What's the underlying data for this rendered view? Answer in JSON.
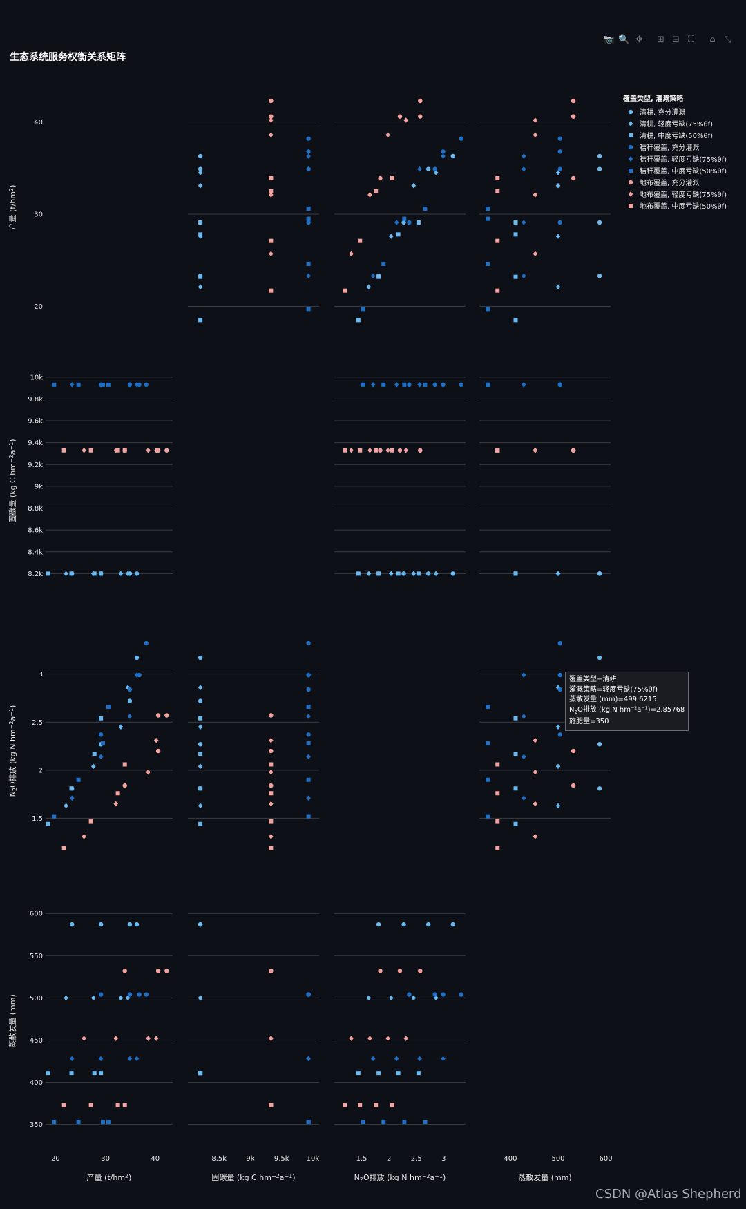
{
  "title": "生态系统服务权衡关系矩阵",
  "watermark": "CSDN @Atlas Shepherd",
  "legend_title": "覆盖类型, 灌溉策略",
  "modebar": [
    {
      "name": "camera-icon",
      "glyph": "📷"
    },
    {
      "name": "zoom-icon",
      "glyph": "🔍"
    },
    {
      "name": "pan-icon",
      "glyph": "✥"
    },
    {
      "name": "zoom-in-icon",
      "glyph": "⊞"
    },
    {
      "name": "zoom-out-icon",
      "glyph": "⊟"
    },
    {
      "name": "autoscale-icon",
      "glyph": "⛶"
    },
    {
      "name": "reset-axes-icon",
      "glyph": "⌂"
    },
    {
      "name": "toggle-spike-icon",
      "glyph": "⤡"
    }
  ],
  "tooltip": {
    "line1": "覆盖类型=清耕",
    "line2": "灌溉策略=轻度亏缺(75%θf)",
    "line3": "蒸散发量 (mm)=499.6215",
    "line4_pre": "N",
    "line4_sub": "2",
    "line4_post": "O排放 (kg N hm⁻²a⁻¹)=2.85768",
    "line5": "施肥量=350"
  },
  "chart_data": {
    "type": "scatter",
    "title": "生态系统服务权衡关系矩阵",
    "dimensions": [
      {
        "key": "yield",
        "label": "产量 (t/hm²)",
        "range": [
          18,
          43.5
        ],
        "ticks": [
          20,
          30,
          40
        ],
        "tick_labels": [
          "20",
          "30",
          "40"
        ]
      },
      {
        "key": "carbon",
        "label": "固碳量 (kg C hm⁻²a⁻¹)",
        "range": [
          8000,
          10100
        ],
        "ticks": [
          8200,
          8400,
          8600,
          8800,
          9000,
          9200,
          9400,
          9600,
          9800,
          10000
        ],
        "tick_labels": [
          "8.2k",
          "8.4k",
          "8.6k",
          "8.8k",
          "9k",
          "9.2k",
          "9.4k",
          "9.6k",
          "9.8k",
          "10k"
        ],
        "tick_labels_x": [
          "",
          "8.5k",
          "",
          "9k",
          "",
          "9.5k",
          "",
          "10k"
        ],
        "ticks_x": [
          8000,
          8500,
          8750,
          9000,
          9250,
          9500,
          9750,
          10000
        ]
      },
      {
        "key": "n2o",
        "label": "N₂O排放 (kg N hm⁻²a⁻¹)",
        "range": [
          1.0,
          3.4
        ],
        "ticks": [
          1.5,
          2,
          2.5,
          3
        ],
        "tick_labels": [
          "1.5",
          "2",
          "2.5",
          "3"
        ]
      },
      {
        "key": "et",
        "label": "蒸散发量 (mm)",
        "range": [
          335,
          610
        ],
        "ticks": [
          350,
          400,
          450,
          500,
          550,
          600
        ],
        "tick_labels": [
          "350",
          "400",
          "450",
          "500",
          "550",
          "600"
        ],
        "ticks_x": [
          400,
          500,
          600
        ],
        "tick_labels_x": [
          "400",
          "500",
          "600"
        ]
      }
    ],
    "series": [
      {
        "name": "清耕, 充分灌溉",
        "color": "#6ab9f0",
        "symbol": "circle",
        "points": [
          [
            23.3,
            8200,
            1.81,
            587
          ],
          [
            29.1,
            8200,
            2.27,
            587
          ],
          [
            34.9,
            8200,
            2.72,
            587
          ],
          [
            36.3,
            8200,
            3.17,
            587
          ]
        ]
      },
      {
        "name": "清耕, 轻度亏缺(75%θf)",
        "color": "#6ab9f0",
        "symbol": "diamond",
        "points": [
          [
            22.1,
            8200,
            1.63,
            500
          ],
          [
            27.6,
            8200,
            2.04,
            500
          ],
          [
            33.1,
            8200,
            2.45,
            500
          ],
          [
            34.5,
            8200,
            2.86,
            500
          ]
        ]
      },
      {
        "name": "清耕, 中度亏缺(50%θf)",
        "color": "#6ab9f0",
        "symbol": "square",
        "points": [
          [
            18.5,
            8200,
            1.44,
            411
          ],
          [
            23.2,
            8200,
            1.81,
            411
          ],
          [
            27.8,
            8200,
            2.17,
            411
          ],
          [
            29.1,
            8200,
            2.54,
            411
          ]
        ]
      },
      {
        "name": "秸秆覆盖, 充分灌溉",
        "color": "#1f6fc4",
        "symbol": "circle",
        "points": [
          [
            29.1,
            9930,
            2.37,
            504
          ],
          [
            34.9,
            9930,
            2.84,
            504
          ],
          [
            36.8,
            9930,
            2.99,
            504
          ],
          [
            38.2,
            9930,
            3.32,
            504
          ]
        ]
      },
      {
        "name": "秸秆覆盖, 轻度亏缺(75%θf)",
        "color": "#1f6fc4",
        "symbol": "diamond",
        "points": [
          [
            23.3,
            9930,
            1.71,
            428
          ],
          [
            29.1,
            9930,
            2.14,
            428
          ],
          [
            34.9,
            9930,
            2.56,
            428
          ],
          [
            36.3,
            9930,
            2.99,
            428
          ]
        ]
      },
      {
        "name": "秸秆覆盖, 中度亏缺(50%θf)",
        "color": "#1f6fc4",
        "symbol": "square",
        "points": [
          [
            19.7,
            9930,
            1.52,
            353
          ],
          [
            24.6,
            9930,
            1.9,
            353
          ],
          [
            29.5,
            9930,
            2.28,
            353
          ],
          [
            30.6,
            9930,
            2.66,
            353
          ]
        ]
      },
      {
        "name": "地布覆盖, 充分灌溉",
        "color": "#f4a3a0",
        "symbol": "circle",
        "points": [
          [
            33.9,
            9330,
            1.84,
            532
          ],
          [
            40.6,
            9330,
            2.2,
            532
          ],
          [
            40.6,
            9330,
            2.57,
            532
          ],
          [
            42.3,
            9330,
            2.57,
            532
          ]
        ]
      },
      {
        "name": "地布覆盖, 轻度亏缺(75%θf)",
        "color": "#f4a3a0",
        "symbol": "diamond",
        "points": [
          [
            25.7,
            9330,
            1.31,
            452
          ],
          [
            32.1,
            9330,
            1.65,
            452
          ],
          [
            38.6,
            9330,
            1.98,
            452
          ],
          [
            40.2,
            9330,
            2.31,
            452
          ]
        ]
      },
      {
        "name": "地布覆盖, 中度亏缺(50%θf)",
        "color": "#f4a3a0",
        "symbol": "square",
        "points": [
          [
            21.7,
            9330,
            1.19,
            373
          ],
          [
            27.1,
            9330,
            1.47,
            373
          ],
          [
            32.5,
            9330,
            1.76,
            373
          ],
          [
            33.9,
            9330,
            2.06,
            373
          ]
        ]
      }
    ]
  }
}
